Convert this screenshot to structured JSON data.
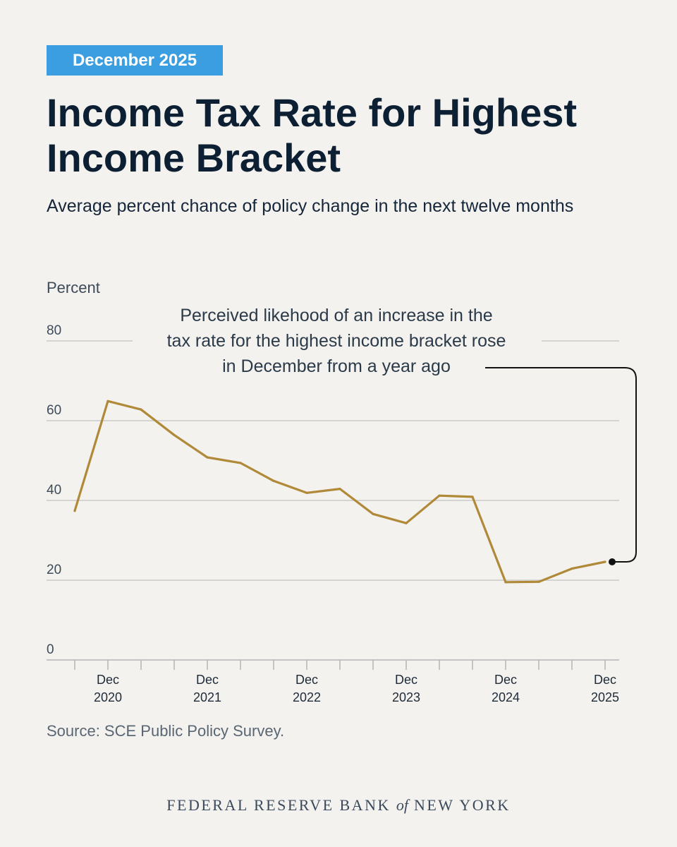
{
  "header": {
    "date_badge": "December 2025",
    "title": "Income Tax Rate for Highest Income Bracket",
    "subtitle": "Average percent chance of policy change in the next twelve months"
  },
  "colors": {
    "line": "#b08939",
    "badge": "#3a9ee0",
    "background": "#f4f2ee",
    "grid": "#c9c9c9"
  },
  "chart_data": {
    "type": "line",
    "title": "Income Tax Rate for Highest Income Bracket",
    "subtitle": "Average percent chance of policy change in the next twelve months",
    "ylabel": "Percent",
    "ylim": [
      0,
      80
    ],
    "yticks": [
      0,
      20,
      40,
      60,
      80
    ],
    "x_tick_labels": [
      {
        "month": "Dec",
        "year": "2020"
      },
      {
        "month": "Dec",
        "year": "2021"
      },
      {
        "month": "Dec",
        "year": "2022"
      },
      {
        "month": "Dec",
        "year": "2023"
      },
      {
        "month": "Dec",
        "year": "2024"
      },
      {
        "month": "Dec",
        "year": "2025"
      }
    ],
    "x": [
      "2020-08",
      "2020-12",
      "2021-04",
      "2021-08",
      "2021-12",
      "2022-04",
      "2022-08",
      "2022-12",
      "2023-04",
      "2023-08",
      "2023-12",
      "2024-04",
      "2024-08",
      "2024-12",
      "2025-04",
      "2025-08",
      "2025-12"
    ],
    "series": [
      {
        "values": [
          37.4,
          64.9,
          62.8,
          56.4,
          50.8,
          49.4,
          44.9,
          41.9,
          42.9,
          36.6,
          34.3,
          41.2,
          40.9,
          19.5,
          19.6,
          22.9,
          24.6
        ]
      }
    ],
    "annotation": "Perceived likehood of an increase in the tax rate for the highest income bracket rose in December from a year ago",
    "annotation_lines": [
      "Perceived likehood of an increase in the",
      "tax rate for the highest income bracket rose",
      "in December from a year ago"
    ],
    "grid": true
  },
  "source": "Source: SCE Public Policy Survey.",
  "footer": {
    "pre": "FEDERAL RESERVE BANK",
    "of": "of",
    "post": "NEW YORK"
  }
}
